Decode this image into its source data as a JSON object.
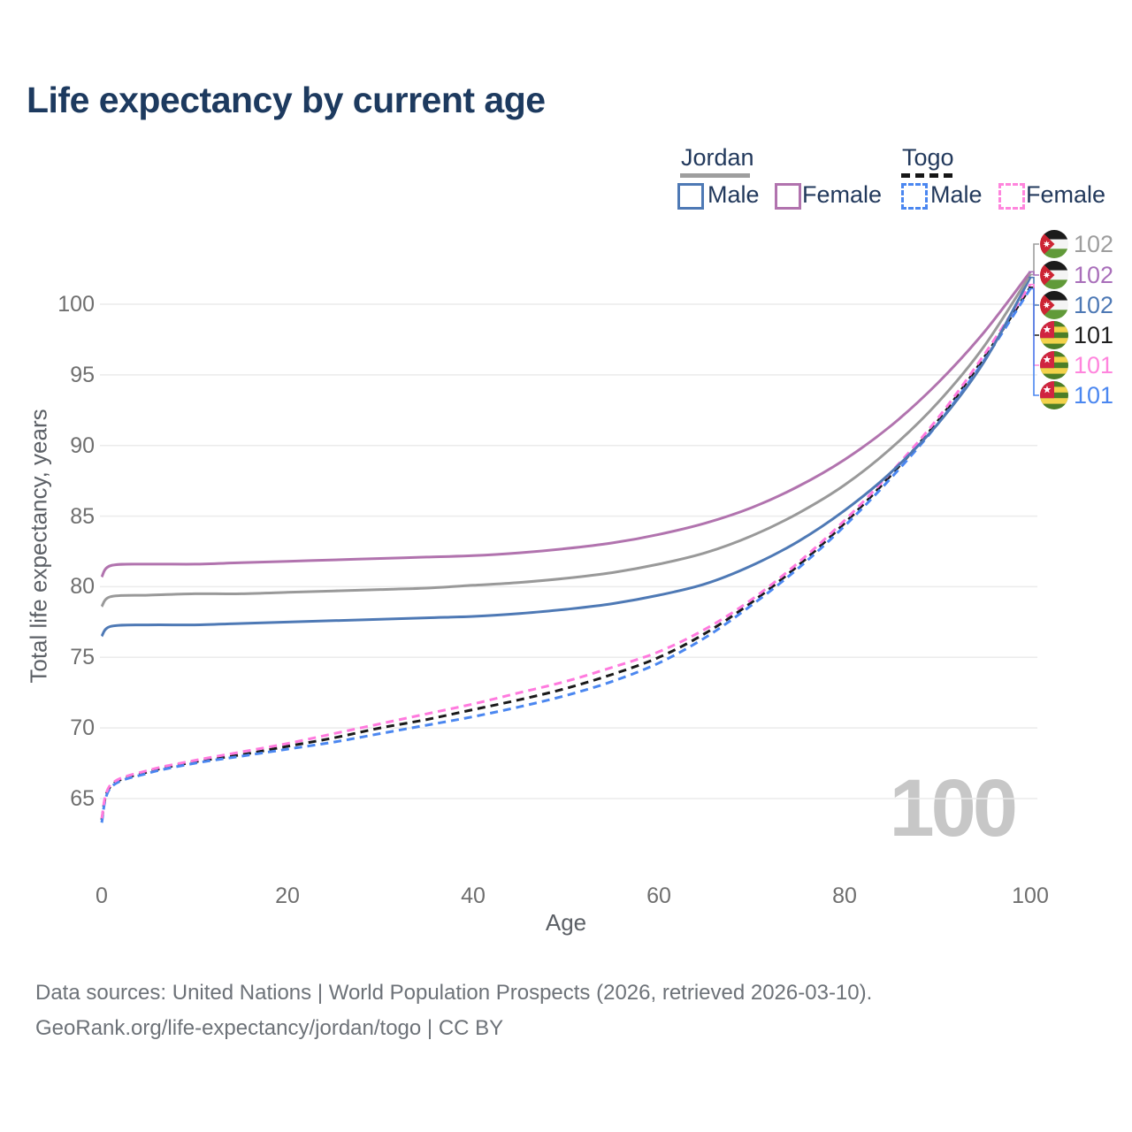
{
  "chart_data": {
    "type": "line",
    "title": "Life expectancy by current age",
    "xlabel": "Age",
    "ylabel": "Total life expectancy, years",
    "unit": "years",
    "xlim": [
      0,
      100
    ],
    "ylim": [
      63,
      103
    ],
    "xticks": [
      0,
      20,
      40,
      60,
      80,
      100
    ],
    "yticks": [
      65,
      70,
      75,
      80,
      85,
      90,
      95,
      100
    ],
    "grid": "horizontal",
    "legend_position": "top-right",
    "hovered_x_value": "100",
    "series": [
      {
        "id": "togo-both",
        "name": "Togo",
        "country": "Togo",
        "sex": "Both",
        "style": "dashed",
        "color": "#1a1a1a",
        "points": [
          [
            0,
            63.5
          ],
          [
            1,
            65.9
          ],
          [
            5,
            66.9
          ],
          [
            10,
            67.6
          ],
          [
            15,
            68.1
          ],
          [
            20,
            68.7
          ],
          [
            25,
            69.3
          ],
          [
            30,
            70.0
          ],
          [
            35,
            70.6
          ],
          [
            40,
            71.3
          ],
          [
            45,
            72.0
          ],
          [
            50,
            72.8
          ],
          [
            55,
            73.8
          ],
          [
            60,
            75.0
          ],
          [
            65,
            76.7
          ],
          [
            70,
            78.9
          ],
          [
            75,
            81.5
          ],
          [
            80,
            84.5
          ],
          [
            85,
            87.9
          ],
          [
            90,
            91.7
          ],
          [
            95,
            96.2
          ],
          [
            100,
            101.2
          ]
        ]
      },
      {
        "id": "togo-male",
        "name": "Togo Male",
        "country": "Togo",
        "sex": "Male",
        "style": "dashed",
        "color": "#4b87f0",
        "points": [
          [
            0,
            63.3
          ],
          [
            1,
            65.8
          ],
          [
            5,
            66.8
          ],
          [
            10,
            67.5
          ],
          [
            15,
            68.0
          ],
          [
            20,
            68.5
          ],
          [
            25,
            69.0
          ],
          [
            30,
            69.6
          ],
          [
            35,
            70.2
          ],
          [
            40,
            70.8
          ],
          [
            45,
            71.5
          ],
          [
            50,
            72.3
          ],
          [
            55,
            73.3
          ],
          [
            60,
            74.6
          ],
          [
            65,
            76.4
          ],
          [
            70,
            78.7
          ],
          [
            75,
            81.3
          ],
          [
            80,
            84.3
          ],
          [
            85,
            87.7
          ],
          [
            90,
            91.5
          ],
          [
            95,
            96.0
          ],
          [
            100,
            101.1
          ]
        ]
      },
      {
        "id": "togo-female",
        "name": "Togo Female",
        "country": "Togo",
        "sex": "Female",
        "style": "dashed",
        "color": "#ff7ade",
        "points": [
          [
            0,
            63.6
          ],
          [
            1,
            66.0
          ],
          [
            5,
            67.0
          ],
          [
            10,
            67.7
          ],
          [
            15,
            68.3
          ],
          [
            20,
            68.9
          ],
          [
            25,
            69.6
          ],
          [
            30,
            70.3
          ],
          [
            35,
            71.0
          ],
          [
            40,
            71.7
          ],
          [
            45,
            72.5
          ],
          [
            50,
            73.3
          ],
          [
            55,
            74.3
          ],
          [
            60,
            75.4
          ],
          [
            65,
            77.0
          ],
          [
            70,
            79.1
          ],
          [
            75,
            81.7
          ],
          [
            80,
            84.7
          ],
          [
            85,
            88.1
          ],
          [
            90,
            91.9
          ],
          [
            95,
            96.4
          ],
          [
            100,
            101.4
          ]
        ]
      },
      {
        "id": "jordan-male",
        "name": "Jordan Male",
        "country": "Jordan",
        "sex": "Male",
        "style": "solid",
        "color": "#4e79b5",
        "points": [
          [
            0,
            76.5
          ],
          [
            1,
            77.2
          ],
          [
            5,
            77.3
          ],
          [
            10,
            77.3
          ],
          [
            15,
            77.4
          ],
          [
            20,
            77.5
          ],
          [
            25,
            77.6
          ],
          [
            30,
            77.7
          ],
          [
            35,
            77.8
          ],
          [
            40,
            77.9
          ],
          [
            45,
            78.1
          ],
          [
            50,
            78.4
          ],
          [
            55,
            78.8
          ],
          [
            60,
            79.4
          ],
          [
            65,
            80.2
          ],
          [
            70,
            81.5
          ],
          [
            75,
            83.2
          ],
          [
            80,
            85.4
          ],
          [
            85,
            88.1
          ],
          [
            90,
            91.5
          ],
          [
            95,
            95.9
          ],
          [
            100,
            101.9
          ]
        ]
      },
      {
        "id": "jordan-both",
        "name": "Jordan",
        "country": "Jordan",
        "sex": "Both",
        "style": "solid",
        "color": "#999999",
        "points": [
          [
            0,
            78.6
          ],
          [
            1,
            79.3
          ],
          [
            5,
            79.4
          ],
          [
            10,
            79.5
          ],
          [
            15,
            79.5
          ],
          [
            20,
            79.6
          ],
          [
            25,
            79.7
          ],
          [
            30,
            79.8
          ],
          [
            35,
            79.9
          ],
          [
            40,
            80.1
          ],
          [
            45,
            80.3
          ],
          [
            50,
            80.6
          ],
          [
            55,
            81.0
          ],
          [
            60,
            81.6
          ],
          [
            65,
            82.4
          ],
          [
            70,
            83.6
          ],
          [
            75,
            85.2
          ],
          [
            80,
            87.2
          ],
          [
            85,
            89.8
          ],
          [
            90,
            93.0
          ],
          [
            95,
            97.0
          ],
          [
            100,
            102.1
          ]
        ]
      },
      {
        "id": "jordan-female",
        "name": "Jordan Female",
        "country": "Jordan",
        "sex": "Female",
        "style": "solid",
        "color": "#b173ae",
        "points": [
          [
            0,
            80.7
          ],
          [
            1,
            81.5
          ],
          [
            5,
            81.6
          ],
          [
            10,
            81.6
          ],
          [
            15,
            81.7
          ],
          [
            20,
            81.8
          ],
          [
            25,
            81.9
          ],
          [
            30,
            82.0
          ],
          [
            35,
            82.1
          ],
          [
            40,
            82.2
          ],
          [
            45,
            82.4
          ],
          [
            50,
            82.7
          ],
          [
            55,
            83.1
          ],
          [
            60,
            83.7
          ],
          [
            65,
            84.5
          ],
          [
            70,
            85.6
          ],
          [
            75,
            87.1
          ],
          [
            80,
            89.0
          ],
          [
            85,
            91.4
          ],
          [
            90,
            94.4
          ],
          [
            95,
            98.0
          ],
          [
            100,
            102.3
          ]
        ]
      }
    ]
  },
  "legend": {
    "groups": [
      {
        "id": "jordan",
        "name": "Jordan",
        "underline_style": "solid",
        "underline_color": "#9e9e9e",
        "items": [
          {
            "label": "Male",
            "color": "#4e79b5",
            "dash": "solid"
          },
          {
            "label": "Female",
            "color": "#b173ae",
            "dash": "solid"
          }
        ]
      },
      {
        "id": "togo",
        "name": "Togo",
        "underline_style": "dashed",
        "underline_color": "#161616",
        "items": [
          {
            "label": "Male",
            "color": "#4b87f0",
            "dash": "dashed"
          },
          {
            "label": "Female",
            "color": "#ff85dd",
            "dash": "dashed"
          }
        ]
      }
    ]
  },
  "end_labels": [
    {
      "series": "jordan-both",
      "flag": "jordan",
      "value": "102",
      "color": "#9e9e9e"
    },
    {
      "series": "jordan-female",
      "flag": "jordan",
      "value": "102",
      "color": "#a96fba"
    },
    {
      "series": "jordan-male",
      "flag": "jordan",
      "value": "102",
      "color": "#4e79b5"
    },
    {
      "series": "togo-both",
      "flag": "togo",
      "value": "101",
      "color": "#1f1f1f"
    },
    {
      "series": "togo-female",
      "flag": "togo",
      "value": "101",
      "color": "#ff85dd"
    },
    {
      "series": "togo-male",
      "flag": "togo",
      "value": "101",
      "color": "#4b87f0"
    }
  ],
  "watermark": "100",
  "footer": {
    "line1": "Data sources: United Nations | World Population Prospects (2026, retrieved 2026-03-10).",
    "line2": "GeoRank.org/life-expectancy/jordan/togo | CC BY"
  }
}
